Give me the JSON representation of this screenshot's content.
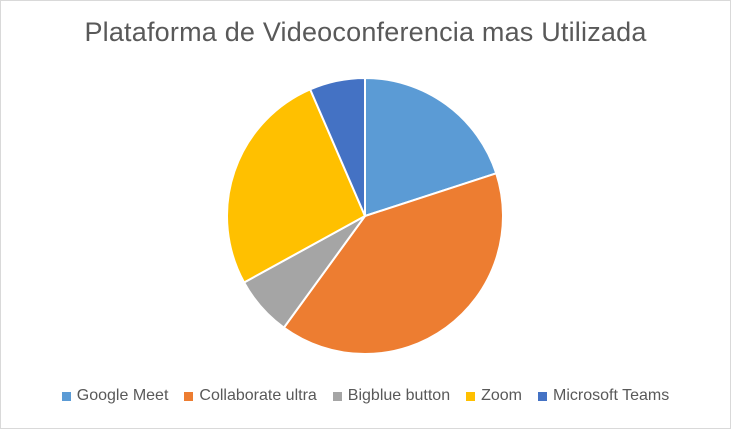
{
  "chart_data": {
    "type": "pie",
    "title": "Plataforma de Videoconferencia mas Utilizada",
    "categories": [
      "Google Meet",
      "Collaborate ultra",
      "Bigblue button",
      "Zoom",
      "Microsoft Teams"
    ],
    "values": [
      20,
      40,
      7,
      26.5,
      6.5
    ],
    "colors": [
      "#5b9bd5",
      "#ed7d31",
      "#a5a5a5",
      "#ffc000",
      "#4472c4"
    ],
    "legend_position": "bottom"
  }
}
